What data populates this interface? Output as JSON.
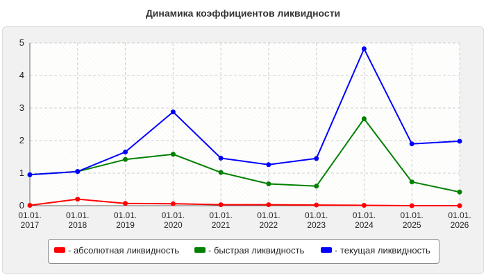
{
  "chart_data": {
    "type": "line",
    "title": "Динамика коэффициентов ликвидности",
    "categories": [
      [
        "01.01.",
        "2017"
      ],
      [
        "01.01.",
        "2018"
      ],
      [
        "01.01.",
        "2019"
      ],
      [
        "01.01.",
        "2020"
      ],
      [
        "01.01.",
        "2021"
      ],
      [
        "01.01.",
        "2022"
      ],
      [
        "01.01.",
        "2023"
      ],
      [
        "01.01.",
        "2024"
      ],
      [
        "01.01.",
        "2025"
      ],
      [
        "01.01.",
        "2026"
      ]
    ],
    "ylim": [
      0,
      5
    ],
    "yticks": [
      0,
      1,
      2,
      3,
      4,
      5
    ],
    "grid": true,
    "legend_position": "bottom",
    "series": [
      {
        "name": "- абсолютная ликвидность",
        "color": "#ff0000",
        "values": [
          0.01,
          0.2,
          0.07,
          0.06,
          0.03,
          0.03,
          0.02,
          0.01,
          0.0,
          0.0
        ]
      },
      {
        "name": "- быстрая ликвидность",
        "color": "#008000",
        "values": [
          0.95,
          1.05,
          1.42,
          1.58,
          1.02,
          0.67,
          0.6,
          2.67,
          0.73,
          0.42
        ]
      },
      {
        "name": "- текущая ликвидность",
        "color": "#0000ff",
        "values": [
          0.95,
          1.05,
          1.65,
          2.88,
          1.46,
          1.26,
          1.45,
          4.82,
          1.9,
          1.98
        ]
      }
    ]
  }
}
